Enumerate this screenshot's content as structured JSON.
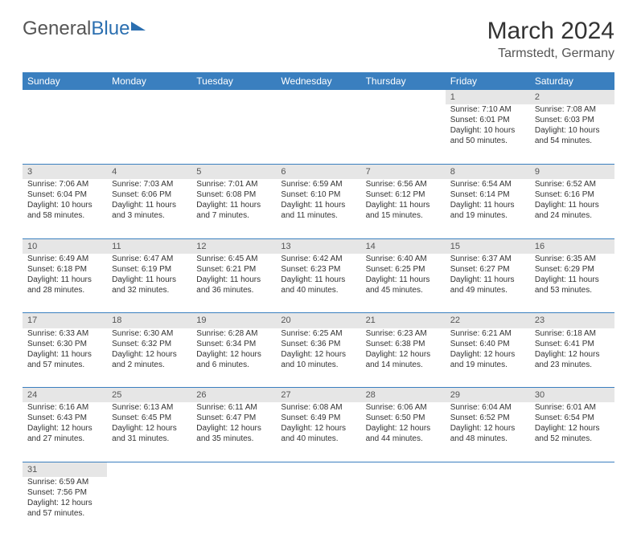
{
  "logo": {
    "text1": "General",
    "text2": "Blue"
  },
  "title": "March 2024",
  "location": "Tarmstedt, Germany",
  "header_bg": "#3a7fbf",
  "daynum_bg": "#e6e6e6",
  "weekdays": [
    "Sunday",
    "Monday",
    "Tuesday",
    "Wednesday",
    "Thursday",
    "Friday",
    "Saturday"
  ],
  "weeks": [
    [
      null,
      null,
      null,
      null,
      null,
      {
        "n": "1",
        "sr": "Sunrise: 7:10 AM",
        "ss": "Sunset: 6:01 PM",
        "dl1": "Daylight: 10 hours",
        "dl2": "and 50 minutes."
      },
      {
        "n": "2",
        "sr": "Sunrise: 7:08 AM",
        "ss": "Sunset: 6:03 PM",
        "dl1": "Daylight: 10 hours",
        "dl2": "and 54 minutes."
      }
    ],
    [
      {
        "n": "3",
        "sr": "Sunrise: 7:06 AM",
        "ss": "Sunset: 6:04 PM",
        "dl1": "Daylight: 10 hours",
        "dl2": "and 58 minutes."
      },
      {
        "n": "4",
        "sr": "Sunrise: 7:03 AM",
        "ss": "Sunset: 6:06 PM",
        "dl1": "Daylight: 11 hours",
        "dl2": "and 3 minutes."
      },
      {
        "n": "5",
        "sr": "Sunrise: 7:01 AM",
        "ss": "Sunset: 6:08 PM",
        "dl1": "Daylight: 11 hours",
        "dl2": "and 7 minutes."
      },
      {
        "n": "6",
        "sr": "Sunrise: 6:59 AM",
        "ss": "Sunset: 6:10 PM",
        "dl1": "Daylight: 11 hours",
        "dl2": "and 11 minutes."
      },
      {
        "n": "7",
        "sr": "Sunrise: 6:56 AM",
        "ss": "Sunset: 6:12 PM",
        "dl1": "Daylight: 11 hours",
        "dl2": "and 15 minutes."
      },
      {
        "n": "8",
        "sr": "Sunrise: 6:54 AM",
        "ss": "Sunset: 6:14 PM",
        "dl1": "Daylight: 11 hours",
        "dl2": "and 19 minutes."
      },
      {
        "n": "9",
        "sr": "Sunrise: 6:52 AM",
        "ss": "Sunset: 6:16 PM",
        "dl1": "Daylight: 11 hours",
        "dl2": "and 24 minutes."
      }
    ],
    [
      {
        "n": "10",
        "sr": "Sunrise: 6:49 AM",
        "ss": "Sunset: 6:18 PM",
        "dl1": "Daylight: 11 hours",
        "dl2": "and 28 minutes."
      },
      {
        "n": "11",
        "sr": "Sunrise: 6:47 AM",
        "ss": "Sunset: 6:19 PM",
        "dl1": "Daylight: 11 hours",
        "dl2": "and 32 minutes."
      },
      {
        "n": "12",
        "sr": "Sunrise: 6:45 AM",
        "ss": "Sunset: 6:21 PM",
        "dl1": "Daylight: 11 hours",
        "dl2": "and 36 minutes."
      },
      {
        "n": "13",
        "sr": "Sunrise: 6:42 AM",
        "ss": "Sunset: 6:23 PM",
        "dl1": "Daylight: 11 hours",
        "dl2": "and 40 minutes."
      },
      {
        "n": "14",
        "sr": "Sunrise: 6:40 AM",
        "ss": "Sunset: 6:25 PM",
        "dl1": "Daylight: 11 hours",
        "dl2": "and 45 minutes."
      },
      {
        "n": "15",
        "sr": "Sunrise: 6:37 AM",
        "ss": "Sunset: 6:27 PM",
        "dl1": "Daylight: 11 hours",
        "dl2": "and 49 minutes."
      },
      {
        "n": "16",
        "sr": "Sunrise: 6:35 AM",
        "ss": "Sunset: 6:29 PM",
        "dl1": "Daylight: 11 hours",
        "dl2": "and 53 minutes."
      }
    ],
    [
      {
        "n": "17",
        "sr": "Sunrise: 6:33 AM",
        "ss": "Sunset: 6:30 PM",
        "dl1": "Daylight: 11 hours",
        "dl2": "and 57 minutes."
      },
      {
        "n": "18",
        "sr": "Sunrise: 6:30 AM",
        "ss": "Sunset: 6:32 PM",
        "dl1": "Daylight: 12 hours",
        "dl2": "and 2 minutes."
      },
      {
        "n": "19",
        "sr": "Sunrise: 6:28 AM",
        "ss": "Sunset: 6:34 PM",
        "dl1": "Daylight: 12 hours",
        "dl2": "and 6 minutes."
      },
      {
        "n": "20",
        "sr": "Sunrise: 6:25 AM",
        "ss": "Sunset: 6:36 PM",
        "dl1": "Daylight: 12 hours",
        "dl2": "and 10 minutes."
      },
      {
        "n": "21",
        "sr": "Sunrise: 6:23 AM",
        "ss": "Sunset: 6:38 PM",
        "dl1": "Daylight: 12 hours",
        "dl2": "and 14 minutes."
      },
      {
        "n": "22",
        "sr": "Sunrise: 6:21 AM",
        "ss": "Sunset: 6:40 PM",
        "dl1": "Daylight: 12 hours",
        "dl2": "and 19 minutes."
      },
      {
        "n": "23",
        "sr": "Sunrise: 6:18 AM",
        "ss": "Sunset: 6:41 PM",
        "dl1": "Daylight: 12 hours",
        "dl2": "and 23 minutes."
      }
    ],
    [
      {
        "n": "24",
        "sr": "Sunrise: 6:16 AM",
        "ss": "Sunset: 6:43 PM",
        "dl1": "Daylight: 12 hours",
        "dl2": "and 27 minutes."
      },
      {
        "n": "25",
        "sr": "Sunrise: 6:13 AM",
        "ss": "Sunset: 6:45 PM",
        "dl1": "Daylight: 12 hours",
        "dl2": "and 31 minutes."
      },
      {
        "n": "26",
        "sr": "Sunrise: 6:11 AM",
        "ss": "Sunset: 6:47 PM",
        "dl1": "Daylight: 12 hours",
        "dl2": "and 35 minutes."
      },
      {
        "n": "27",
        "sr": "Sunrise: 6:08 AM",
        "ss": "Sunset: 6:49 PM",
        "dl1": "Daylight: 12 hours",
        "dl2": "and 40 minutes."
      },
      {
        "n": "28",
        "sr": "Sunrise: 6:06 AM",
        "ss": "Sunset: 6:50 PM",
        "dl1": "Daylight: 12 hours",
        "dl2": "and 44 minutes."
      },
      {
        "n": "29",
        "sr": "Sunrise: 6:04 AM",
        "ss": "Sunset: 6:52 PM",
        "dl1": "Daylight: 12 hours",
        "dl2": "and 48 minutes."
      },
      {
        "n": "30",
        "sr": "Sunrise: 6:01 AM",
        "ss": "Sunset: 6:54 PM",
        "dl1": "Daylight: 12 hours",
        "dl2": "and 52 minutes."
      }
    ],
    [
      {
        "n": "31",
        "sr": "Sunrise: 6:59 AM",
        "ss": "Sunset: 7:56 PM",
        "dl1": "Daylight: 12 hours",
        "dl2": "and 57 minutes."
      },
      null,
      null,
      null,
      null,
      null,
      null
    ]
  ]
}
